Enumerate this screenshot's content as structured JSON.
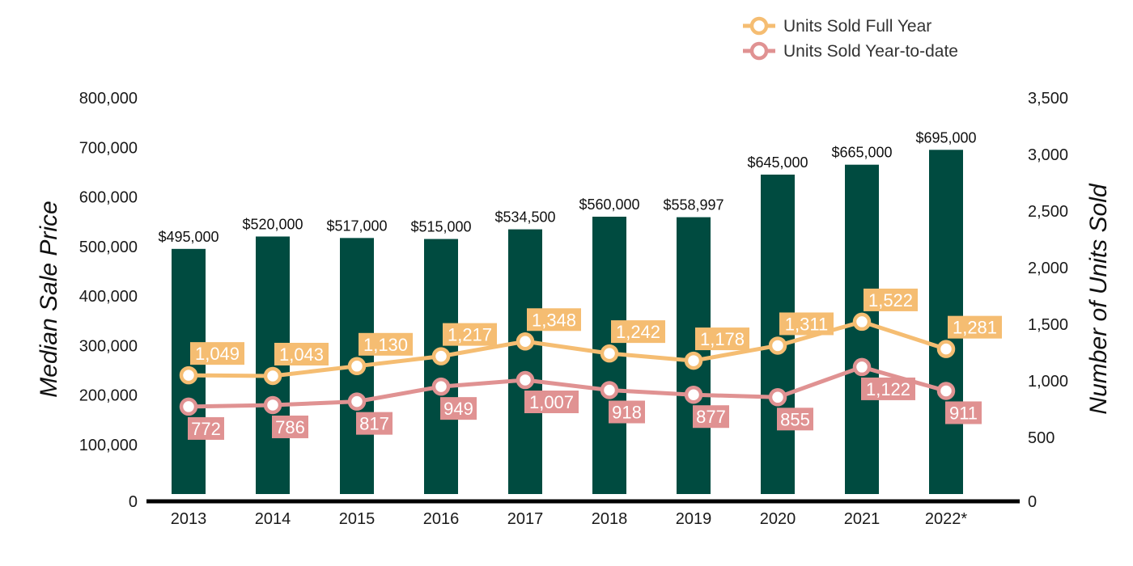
{
  "chart_data": {
    "type": "bar",
    "categories": [
      "2013",
      "2014",
      "2015",
      "2016",
      "2017",
      "2018",
      "2019",
      "2020",
      "2021",
      "2022*"
    ],
    "bars": {
      "values": [
        495000,
        520000,
        517000,
        515000,
        534500,
        560000,
        558997,
        645000,
        665000,
        695000
      ],
      "labels": [
        "$495,000",
        "$520,000",
        "$517,000",
        "$515,000",
        "$534,500",
        "$560,000",
        "$558,997",
        "$645,000",
        "$665,000",
        "$695,000"
      ],
      "color": "#004b40"
    },
    "series": [
      {
        "name": "Units Sold Full Year",
        "type": "line",
        "axis": "right",
        "values": [
          1049,
          1043,
          1130,
          1217,
          1348,
          1242,
          1178,
          1311,
          1522,
          1281
        ],
        "labels": [
          "1,049",
          "1,043",
          "1,130",
          "1,217",
          "1,348",
          "1,242",
          "1,178",
          "1,311",
          "1,522",
          "1,281"
        ],
        "plotted": [
          1049,
          1043,
          1130,
          1217,
          1348,
          1242,
          1178,
          1311,
          1522,
          1281
        ],
        "color": "#f5bd72"
      },
      {
        "name": "Units Sold Year-to-date",
        "type": "line",
        "axis": "right",
        "values": [
          772,
          786,
          817,
          949,
          1007,
          918,
          877,
          855,
          1122,
          911
        ],
        "labels": [
          "772",
          "786",
          "817",
          "949",
          "1,007",
          "918",
          "877",
          "855",
          "1,122",
          "911"
        ],
        "plotted": [
          772,
          786,
          817,
          949,
          1007,
          918,
          877,
          855,
          1122,
          911
        ],
        "color": "#e09292"
      }
    ],
    "ylabel": "Median Sale Price",
    "y2label": "Number of Units Sold",
    "ylim": [
      0,
      800000
    ],
    "y2lim": [
      0,
      3500
    ],
    "yticks": [
      0,
      100000,
      200000,
      300000,
      400000,
      500000,
      600000,
      700000,
      800000
    ],
    "yticklabels": [
      "0",
      "100,000",
      "200,000",
      "300,000",
      "400,000",
      "500,000",
      "600,000",
      "700,000",
      "800,000"
    ],
    "y2ticks": [
      0,
      500,
      1000,
      1500,
      2000,
      2500,
      3000,
      3500
    ],
    "y2ticklabels": [
      "0",
      "500",
      "1,000",
      "1,500",
      "2,000",
      "2,500",
      "3,000",
      "3,500"
    ],
    "grid": false,
    "legend": "top-right"
  }
}
